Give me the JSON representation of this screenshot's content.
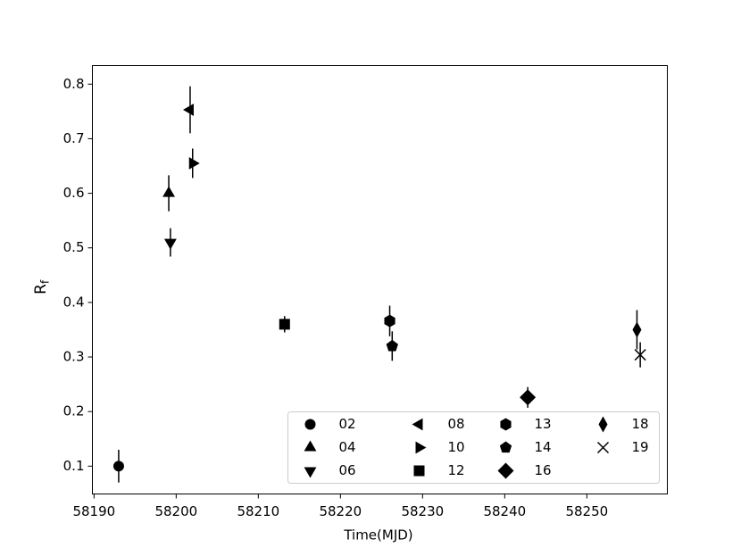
{
  "chart_data": {
    "type": "scatter",
    "xlabel": "Time(MJD)",
    "ylabel": {
      "base": "R",
      "subscript": "f"
    },
    "xlim": [
      58189.8,
      58259.8
    ],
    "xticks": [
      58190,
      58200,
      58210,
      58220,
      58230,
      58240,
      58250
    ],
    "ylim": [
      0.049,
      0.834
    ],
    "yticks": [
      0.1,
      0.2,
      0.3,
      0.4,
      0.5,
      0.6,
      0.7,
      0.8
    ],
    "legend": "lower right",
    "legend_columns": 4,
    "series": [
      {
        "name": "02",
        "color": "#000000",
        "marker": "circle",
        "x": [
          58193.0
        ],
        "values": [
          0.1
        ],
        "errors": [
          0.03
        ]
      },
      {
        "name": "04",
        "color": "#000000",
        "marker": "triangle-up",
        "x": [
          58199.1
        ],
        "values": [
          0.6
        ],
        "errors": [
          0.033
        ]
      },
      {
        "name": "06",
        "color": "#000000",
        "marker": "triangle-down",
        "x": [
          58199.3
        ],
        "values": [
          0.51
        ],
        "errors": [
          0.026
        ]
      },
      {
        "name": "08",
        "color": "#000000",
        "marker": "triangle-left",
        "x": [
          58201.7
        ],
        "values": [
          0.753
        ],
        "errors": [
          0.043
        ]
      },
      {
        "name": "10",
        "color": "#000000",
        "marker": "triangle-right",
        "x": [
          58202.0
        ],
        "values": [
          0.655
        ],
        "errors": [
          0.027
        ]
      },
      {
        "name": "12",
        "color": "#000000",
        "marker": "square",
        "x": [
          58213.2
        ],
        "values": [
          0.36
        ],
        "errors": [
          0.015
        ]
      },
      {
        "name": "13",
        "color": "#000000",
        "marker": "hexagon",
        "x": [
          58226.0
        ],
        "values": [
          0.366
        ],
        "errors": [
          0.028
        ]
      },
      {
        "name": "14",
        "color": "#000000",
        "marker": "pentagon",
        "x": [
          58226.3
        ],
        "values": [
          0.32
        ],
        "errors": [
          0.027
        ]
      },
      {
        "name": "16",
        "color": "#000000",
        "marker": "diamond",
        "x": [
          58242.8
        ],
        "values": [
          0.226
        ],
        "errors": [
          0.019
        ]
      },
      {
        "name": "18",
        "color": "#000000",
        "marker": "thin-diamond",
        "x": [
          58256.1
        ],
        "values": [
          0.35
        ],
        "errors": [
          0.036
        ]
      },
      {
        "name": "19",
        "color": "#000000",
        "marker": "x",
        "x": [
          58256.5
        ],
        "values": [
          0.304
        ],
        "errors": [
          0.023
        ]
      }
    ]
  }
}
